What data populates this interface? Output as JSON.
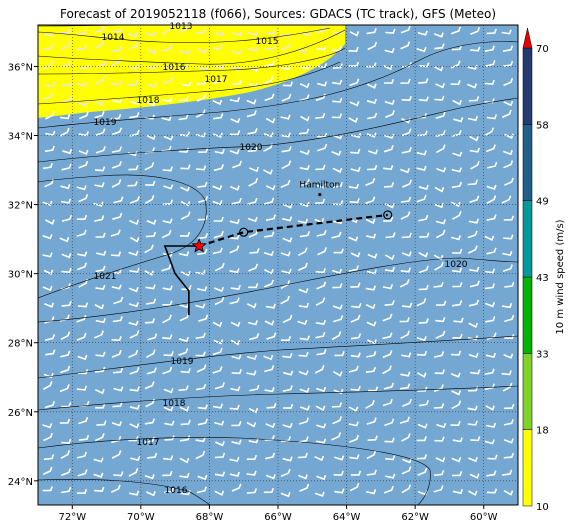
{
  "title": "Forecast of 2019052118 (f066), Sources: GDACS (TC track), GFS (Meteo)",
  "map": {
    "lon_range": [
      -73,
      -59
    ],
    "lat_range": [
      23.3,
      37.2
    ],
    "lon_ticks": [
      {
        "value": -72,
        "label": "72°W"
      },
      {
        "value": -70,
        "label": "70°W"
      },
      {
        "value": -68,
        "label": "68°W"
      },
      {
        "value": -66,
        "label": "66°W"
      },
      {
        "value": -64,
        "label": "64°W"
      },
      {
        "value": -62,
        "label": "62°W"
      },
      {
        "value": -60,
        "label": "60°W"
      }
    ],
    "lat_ticks": [
      {
        "value": 24,
        "label": "24°N"
      },
      {
        "value": 26,
        "label": "26°N"
      },
      {
        "value": 28,
        "label": "28°N"
      },
      {
        "value": 30,
        "label": "30°N"
      },
      {
        "value": 32,
        "label": "32°N"
      },
      {
        "value": 34,
        "label": "34°N"
      },
      {
        "value": 36,
        "label": "36°N"
      }
    ],
    "ocean_color": "#74a7d1",
    "land_color": "#ffff00",
    "wind_barb_color": "#ffffff",
    "isobar_labels": [
      "1013",
      "1014",
      "1015",
      "1016",
      "1017",
      "1018",
      "1019",
      "1020",
      "1021",
      "1020",
      "1019",
      "1018",
      "1017",
      "1016"
    ],
    "city": {
      "name": "Hamilton",
      "lon": -64.78,
      "lat": 32.29
    }
  },
  "track": {
    "current_position": {
      "lon": -68.3,
      "lat": 30.8
    },
    "forecast_points": [
      {
        "lon": -67.0,
        "lat": 31.2
      },
      {
        "lon": -62.8,
        "lat": 31.7
      }
    ],
    "past_track": [
      {
        "lon": -69.3,
        "lat": 30.8
      },
      {
        "lon": -68.3,
        "lat": 30.8
      }
    ]
  },
  "colorbar": {
    "label": "10 m wind speed (m/s)",
    "levels": [
      {
        "value": "10",
        "color": "#ffff00"
      },
      {
        "value": "18",
        "color": "#7fd326"
      },
      {
        "value": "33",
        "color": "#00b400"
      },
      {
        "value": "43",
        "color": "#009a9a"
      },
      {
        "value": "49",
        "color": "#1e5f8c"
      },
      {
        "value": "58",
        "color": "#253a73"
      },
      {
        "value": "70",
        "color": "#e60000"
      }
    ]
  }
}
